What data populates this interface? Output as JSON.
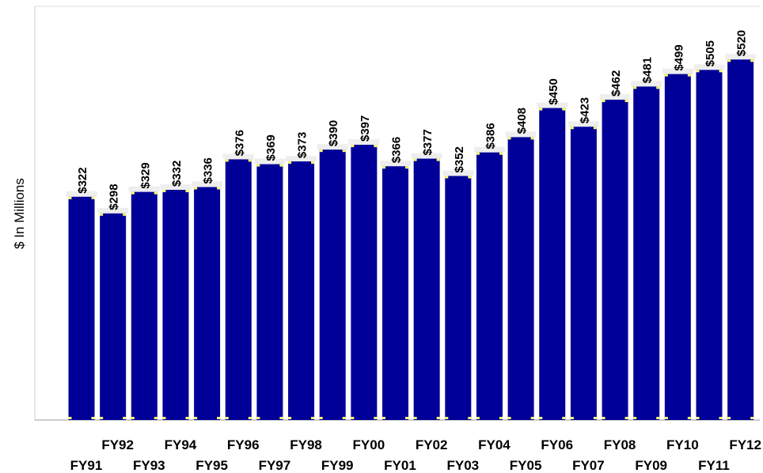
{
  "chart_data": {
    "type": "bar",
    "ylabel": "$ In Millions",
    "xlabel": "",
    "title": "",
    "categories": [
      "FY91",
      "FY92",
      "FY93",
      "FY94",
      "FY95",
      "FY96",
      "FY97",
      "FY98",
      "FY99",
      "FY00",
      "FY01",
      "FY02",
      "FY03",
      "FY04",
      "FY05",
      "FY06",
      "FY07",
      "FY08",
      "FY09",
      "FY10",
      "FY11",
      "FY12"
    ],
    "values": [
      322,
      298,
      329,
      332,
      336,
      376,
      369,
      373,
      390,
      397,
      366,
      377,
      352,
      386,
      408,
      450,
      423,
      462,
      481,
      499,
      505,
      520
    ],
    "value_labels": [
      "$322",
      "$298",
      "$329",
      "$332",
      "$336",
      "$376",
      "$369",
      "$373",
      "$390",
      "$397",
      "$366",
      "$377",
      "$352",
      "$386",
      "$408",
      "$450",
      "$423",
      "$462",
      "$481",
      "$499",
      "$505",
      "$520"
    ],
    "ylim": [
      0,
      560
    ],
    "grid": false,
    "legend": "none",
    "colors": {
      "bar": "#000099",
      "accent": "#ffff66",
      "axis": "#999999"
    }
  }
}
